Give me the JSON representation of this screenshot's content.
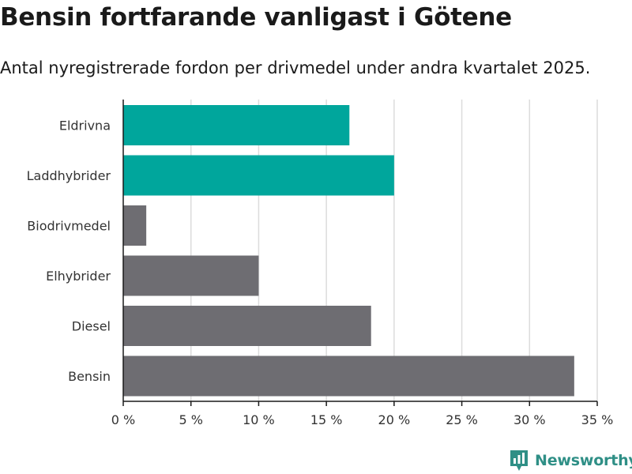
{
  "title": "Bensin fortfarande vanligast i Götene",
  "subtitle": "Antal nyregistrerade fordon per drivmedel under andra kvartalet 2025.",
  "brand": {
    "name": "Newsworthy",
    "icon": "bar-chart-icon",
    "color": "#2f8f86"
  },
  "chart_data": {
    "type": "bar",
    "orientation": "horizontal",
    "categories": [
      "Eldrivna",
      "Laddhybrider",
      "Biodrivmedel",
      "Elhybrider",
      "Diesel",
      "Bensin"
    ],
    "values": [
      16.7,
      20.0,
      1.7,
      10.0,
      18.3,
      33.3
    ],
    "colors": [
      "#00a69c",
      "#00a69c",
      "#6e6d72",
      "#6e6d72",
      "#6e6d72",
      "#6e6d72"
    ],
    "xlim": [
      0,
      35
    ],
    "xticks": [
      0,
      5,
      10,
      15,
      20,
      25,
      30,
      35
    ],
    "tick_suffix": " %",
    "grid": true,
    "xlabel": "",
    "ylabel": ""
  }
}
